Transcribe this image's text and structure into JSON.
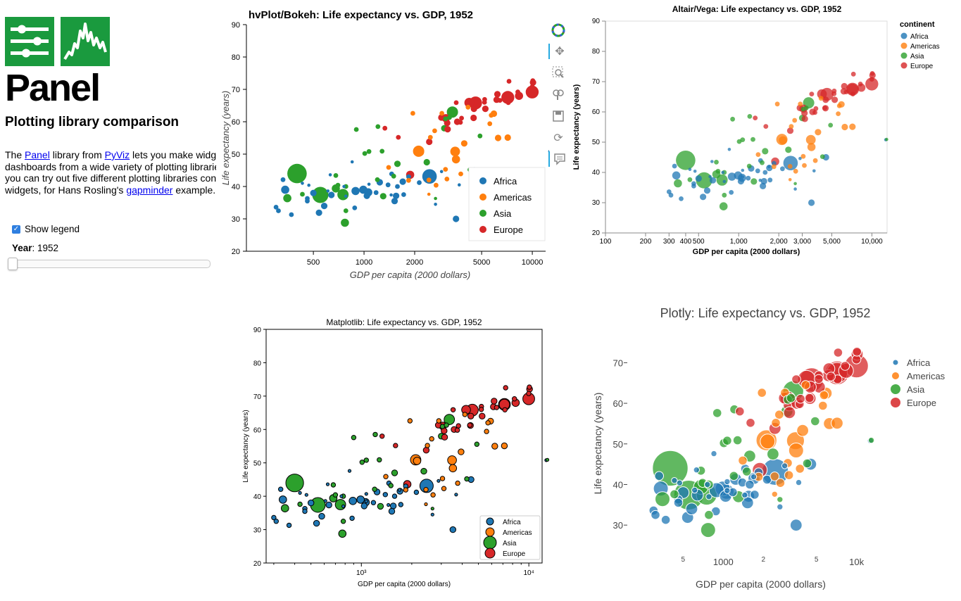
{
  "sidebar": {
    "panel_title": "Panel",
    "subtitle": "Plotting library comparison",
    "intro": {
      "t1": "The ",
      "panel_link": "Panel",
      "t2": " library from ",
      "pyviz_link": "PyViz",
      "t3": " lets you make widget-based interactive",
      "line2": "dashboards from a wide variety of plotting libraries and data sources. Here",
      "line3": "you can try out five different plotting libraries controlled by the same",
      "line4a": "widgets, for Hans Rosling's ",
      "gapminder_link": "gapminder",
      "line4b": " example."
    },
    "show_legend_label": "Show legend",
    "year_label": "Year",
    "year_value": ": 1952"
  },
  "colors": {
    "Africa": "#1f77b4",
    "Americas": "#ff7f0e",
    "Asia": "#2ca02c",
    "Europe": "#d62728"
  },
  "chart_data": [
    {
      "type": "scatter",
      "library": "bokeh",
      "title": "hvPlot/Bokeh: Life expectancy vs. GDP, 1952",
      "xlabel": "GDP per capita (2000 dollars)",
      "ylabel": "Life expectancy (years)",
      "xscale": "log",
      "xlim": [
        200,
        12000
      ],
      "ylim": [
        20,
        90
      ],
      "xticks": [
        "500",
        "1000",
        "2000",
        "5000",
        "10000"
      ],
      "yticks": [
        "20",
        "30",
        "40",
        "50",
        "60",
        "70",
        "80",
        "90"
      ],
      "legend": [
        "Africa",
        "Americas",
        "Asia",
        "Europe"
      ],
      "legend_position": "bottom-right"
    },
    {
      "type": "scatter",
      "library": "altair",
      "title": "Altair/Vega: Life expectancy vs. GDP, 1952",
      "xlabel": "GDP per capita (2000 dollars)",
      "ylabel": "Life expectancy (years)",
      "xscale": "log",
      "xlim": [
        100,
        13000
      ],
      "ylim": [
        20,
        90
      ],
      "xticks": [
        "100",
        "200",
        "300",
        "400",
        "500",
        "1,000",
        "2,000",
        "3,000",
        "5,000",
        "10,000"
      ],
      "yticks": [
        "20",
        "30",
        "40",
        "50",
        "60",
        "70",
        "80",
        "90"
      ],
      "legend_title": "continent",
      "legend": [
        "Africa",
        "Americas",
        "Asia",
        "Europe"
      ],
      "legend_position": "top-right"
    },
    {
      "type": "scatter",
      "library": "matplotlib",
      "title": "Matplotlib: Life expectancy vs. GDP, 1952",
      "xlabel": "GDP per capita (2000 dollars)",
      "ylabel": "Life expectancy (years)",
      "xscale": "log",
      "xlim": [
        270,
        12000
      ],
      "ylim": [
        20,
        90
      ],
      "xticks": [
        "10³",
        "10⁴"
      ],
      "yticks": [
        "20",
        "30",
        "40",
        "50",
        "60",
        "70",
        "80",
        "90"
      ],
      "legend": [
        "Africa",
        "Americas",
        "Asia",
        "Europe"
      ],
      "legend_position": "bottom-right"
    },
    {
      "type": "scatter",
      "library": "plotly",
      "title": "Plotly: Life expectancy vs. GDP, 1952",
      "xlabel": "GDP per capita (2000 dollars)",
      "ylabel": "Life expectancy (years)",
      "xscale": "log",
      "xlim": [
        200,
        15000
      ],
      "ylim": [
        25,
        77
      ],
      "xticks": [
        "5",
        "1000",
        "2",
        "5",
        "10k"
      ],
      "yticks": [
        "30",
        "40",
        "50",
        "60",
        "70"
      ],
      "legend": [
        "Africa",
        "Americas",
        "Asia",
        "Europe"
      ],
      "legend_position": "top-right"
    }
  ],
  "points": [
    [
      "Africa",
      2450,
      43.1,
      9
    ],
    [
      "Africa",
      3520,
      30.0,
      4
    ],
    [
      "Africa",
      1060,
      38.2,
      5
    ],
    [
      "Africa",
      850,
      47.6,
      2
    ],
    [
      "Africa",
      540,
      31.9,
      4
    ],
    [
      "Africa",
      340,
      39.0,
      5
    ],
    [
      "Africa",
      1070,
      38.5,
      2
    ],
    [
      "Africa",
      1180,
      38.1,
      3
    ],
    [
      "Africa",
      1070,
      40.7,
      2
    ],
    [
      "Africa",
      780,
      37.0,
      2
    ],
    [
      "Africa",
      2130,
      41.2,
      3
    ],
    [
      "Africa",
      1390,
      40.5,
      3
    ],
    [
      "Africa",
      1580,
      40.0,
      3
    ],
    [
      "Africa",
      580,
      34.0,
      4
    ],
    [
      "Africa",
      2660,
      34.5,
      2
    ],
    [
      "Africa",
      12700,
      50.8,
      2
    ],
    [
      "Africa",
      3680,
      40.5,
      2
    ],
    [
      "Africa",
      1040,
      37.1,
      4
    ],
    [
      "Africa",
      470,
      40.4,
      2
    ],
    [
      "Africa",
      300,
      33.6,
      3
    ],
    [
      "Africa",
      370,
      31.3,
      3
    ],
    [
      "Africa",
      1690,
      41.9,
      2
    ],
    [
      "Africa",
      460,
      36.3,
      3
    ],
    [
      "Africa",
      1450,
      37.4,
      2
    ],
    [
      "Africa",
      1840,
      43.0,
      3
    ],
    [
      "Africa",
      1240,
      41.3,
      4
    ],
    [
      "Africa",
      880,
      33.4,
      3
    ],
    [
      "Africa",
      1720,
      37.5,
      3
    ],
    [
      "Africa",
      1550,
      37.1,
      4
    ],
    [
      "Africa",
      610,
      38.6,
      2
    ],
    [
      "Africa",
      1520,
      35.5,
      4
    ],
    [
      "Africa",
      330,
      42.1,
      3
    ],
    [
      "Africa",
      630,
      43.6,
      2
    ],
    [
      "Africa",
      2890,
      44.6,
      2
    ],
    [
      "Africa",
      1460,
      43.9,
      3
    ],
    [
      "Africa",
      640,
      37.4,
      4
    ],
    [
      "Africa",
      460,
      35.5,
      3
    ],
    [
      "Africa",
      500,
      38.0,
      4
    ],
    [
      "Africa",
      990,
      39.0,
      5
    ],
    [
      "Africa",
      4520,
      45.0,
      4
    ],
    [
      "Africa",
      430,
      41.0,
      2
    ],
    [
      "Africa",
      310,
      32.5,
      3
    ],
    [
      "Africa",
      890,
      38.6,
      5
    ],
    [
      "Africa",
      1700,
      41.5,
      4
    ],
    [
      "Africa",
      760,
      40.0,
      2
    ],
    [
      "Americas",
      5910,
      62.5,
      4
    ],
    [
      "Americas",
      2680,
      40.4,
      3
    ],
    [
      "Americas",
      2110,
      50.9,
      7
    ],
    [
      "Americas",
      3940,
      53.3,
      4
    ],
    [
      "Americas",
      2150,
      50.6,
      5
    ],
    [
      "Americas",
      2630,
      57.2,
      3
    ],
    [
      "Americas",
      5590,
      59.4,
      3
    ],
    [
      "Americas",
      1400,
      45.9,
      3
    ],
    [
      "Americas",
      3520,
      48.4,
      5
    ],
    [
      "Americas",
      3050,
      45.3,
      3
    ],
    [
      "Americas",
      2430,
      42.0,
      3
    ],
    [
      "Americas",
      2430,
      37.6,
      2
    ],
    [
      "Americas",
      1840,
      41.9,
      3
    ],
    [
      "Americas",
      2900,
      62.6,
      3
    ],
    [
      "Americas",
      3480,
      50.8,
      6
    ],
    [
      "Americas",
      3110,
      42.3,
      3
    ],
    [
      "Americas",
      2480,
      55.2,
      3
    ],
    [
      "Americas",
      1950,
      62.6,
      3
    ],
    [
      "Americas",
      3760,
      43.9,
      3
    ],
    [
      "Americas",
      6260,
      55.0,
      4
    ],
    [
      "Americas",
      4150,
      64.5,
      3
    ],
    [
      "Americas",
      7145,
      55.1,
      4
    ],
    [
      "Americas",
      5700,
      62.0,
      3
    ],
    [
      "Asia",
      770,
      28.8,
      5
    ],
    [
      "Asia",
      1280,
      50.9,
      3
    ],
    [
      "Asia",
      680,
      39.4,
      5
    ],
    [
      "Asia",
      400,
      44.0,
      12
    ],
    [
      "Asia",
      3050,
      60.9,
      3
    ],
    [
      "Asia",
      550,
      37.4,
      10
    ],
    [
      "Asia",
      750,
      37.5,
      7
    ],
    [
      "Asia",
      1300,
      37.0,
      4
    ],
    [
      "Asia",
      3350,
      63.0,
      7
    ],
    [
      "Asia",
      1500,
      43.2,
      3
    ],
    [
      "Asia",
      1580,
      47.0,
      4
    ],
    [
      "Asia",
      1210,
      58.5,
      3
    ],
    [
      "Asia",
      1010,
      50.2,
      3
    ],
    [
      "Asia",
      680,
      43.4,
      3
    ],
    [
      "Asia",
      3000,
      58.0,
      4
    ],
    [
      "Asia",
      3220,
      61.3,
      3
    ],
    [
      "Asia",
      2660,
      36.3,
      2
    ],
    [
      "Asia",
      780,
      32.5,
      3
    ],
    [
      "Asia",
      1200,
      42.1,
      3
    ],
    [
      "Asia",
      2360,
      47.5,
      4
    ],
    [
      "Asia",
      4890,
      55.6,
      3
    ],
    [
      "Asia",
      1070,
      50.8,
      3
    ],
    [
      "Asia",
      900,
      57.6,
      3
    ],
    [
      "Asia",
      4260,
      45.2,
      3
    ],
    [
      "Asia",
      12900,
      50.9,
      2
    ],
    [
      "Asia",
      350,
      36.4,
      5
    ],
    [
      "Asia",
      430,
      37.6,
      3
    ],
    [
      "Asia",
      700,
      40.4,
      3
    ],
    [
      "Asia",
      780,
      40.0,
      3
    ],
    [
      "Europe",
      1600,
      55.2,
      3
    ],
    [
      "Europe",
      6140,
      66.8,
      4
    ],
    [
      "Europe",
      8340,
      68.0,
      5
    ],
    [
      "Europe",
      2440,
      53.8,
      4
    ],
    [
      "Europe",
      3120,
      59.6,
      4
    ],
    [
      "Europe",
      4480,
      61.2,
      4
    ],
    [
      "Europe",
      7200,
      65.9,
      3
    ],
    [
      "Europe",
      9980,
      70.8,
      3
    ],
    [
      "Europe",
      6420,
      66.6,
      3
    ],
    [
      "Europe",
      7140,
      67.5,
      7
    ],
    [
      "Europe",
      7150,
      67.5,
      8
    ],
    [
      "Europe",
      3530,
      65.9,
      3
    ],
    [
      "Europe",
      5260,
      64.0,
      4
    ],
    [
      "Europe",
      7270,
      72.5,
      3
    ],
    [
      "Europe",
      5210,
      66.9,
      3
    ],
    [
      "Europe",
      4220,
      65.9,
      6
    ],
    [
      "Europe",
      10070,
      72.7,
      3
    ],
    [
      "Europe",
      4440,
      61.3,
      3
    ],
    [
      "Europe",
      10100,
      72.1,
      4
    ],
    [
      "Europe",
      2880,
      61.3,
      4
    ],
    [
      "Europe",
      3740,
      59.8,
      3
    ],
    [
      "Europe",
      3060,
      61.1,
      5
    ],
    [
      "Europe",
      3140,
      57.7,
      4
    ],
    [
      "Europe",
      3580,
      60.0,
      4
    ],
    [
      "Europe",
      1880,
      43.6,
      5
    ],
    [
      "Europe",
      5200,
      66.0,
      3
    ],
    [
      "Europe",
      4500,
      64.0,
      4
    ],
    [
      "Europe",
      8200,
      69.2,
      3
    ],
    [
      "Europe",
      9980,
      69.2,
      8
    ],
    [
      "Europe",
      6200,
      68.5,
      4
    ],
    [
      "Europe",
      1330,
      58.0,
      3
    ],
    [
      "Europe",
      3800,
      61.1,
      3
    ],
    [
      "Europe",
      4600,
      65.8,
      8
    ]
  ]
}
